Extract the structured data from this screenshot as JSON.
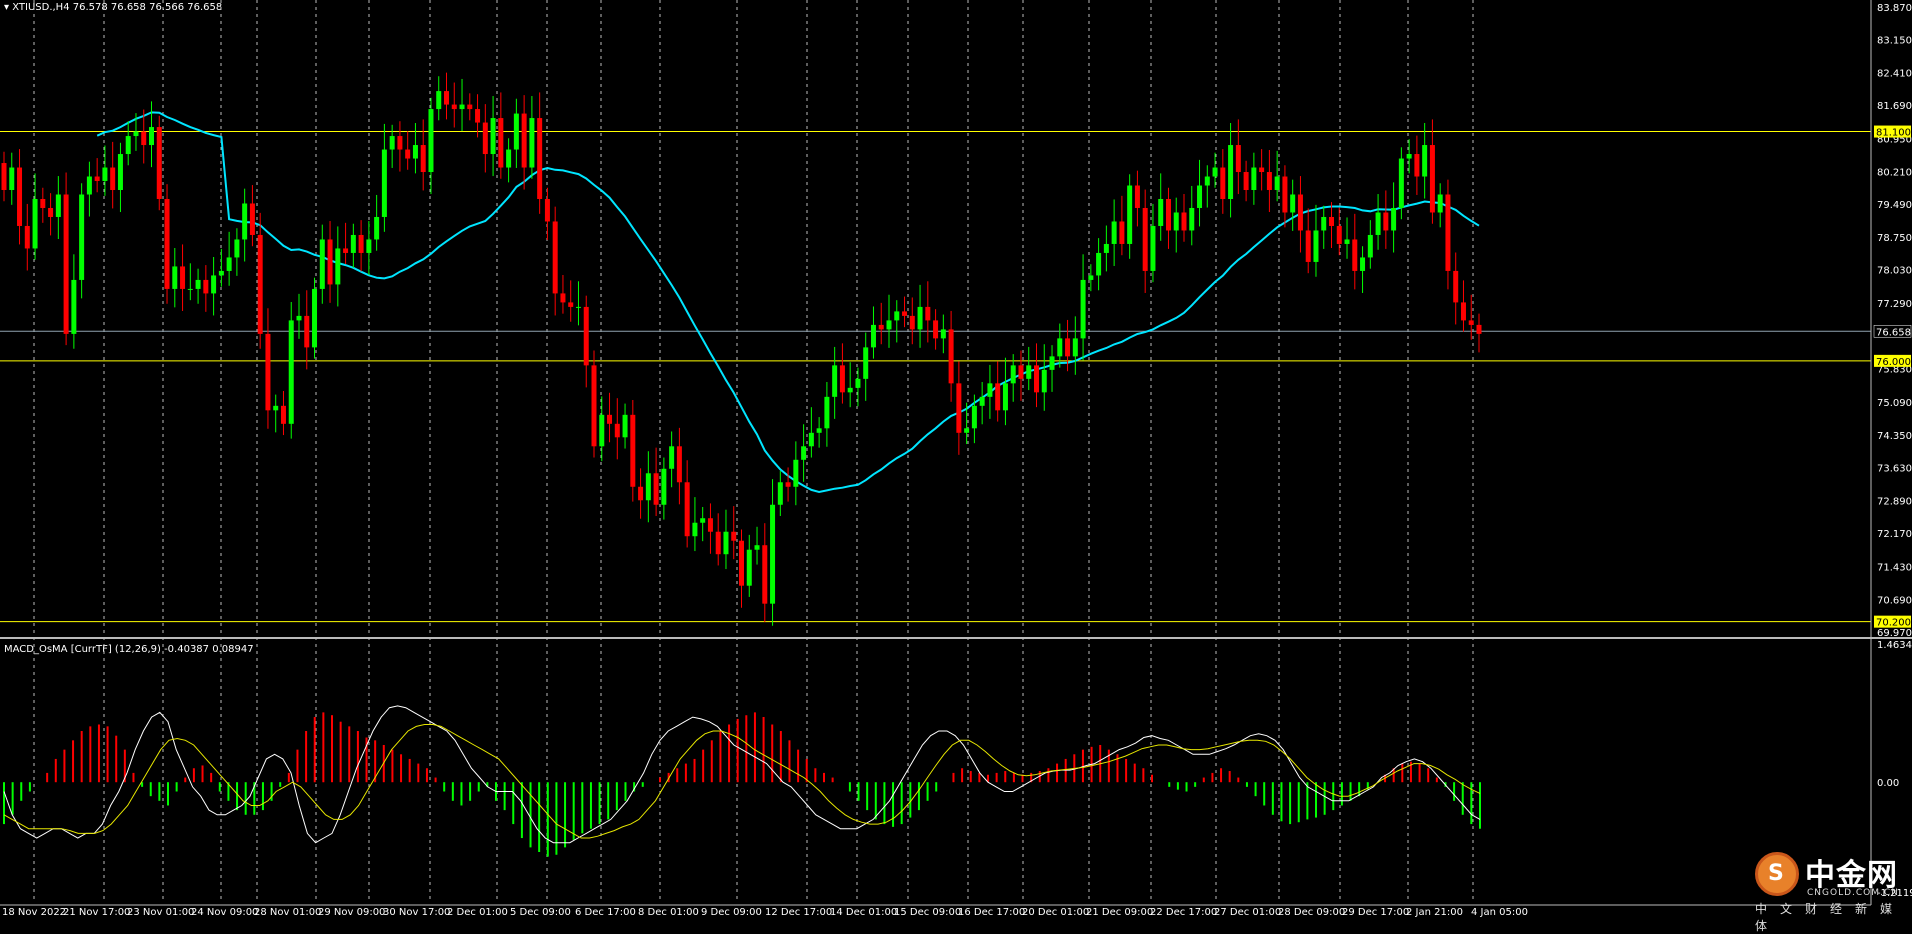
{
  "main_header": {
    "symbol": "XTIUSD.,H4",
    "ohlc": "76.578 76.658 76.566 76.658"
  },
  "price_axis_labels": [
    "83.870",
    "83.150",
    "82.410",
    "81.690",
    "80.950",
    "80.210",
    "79.490",
    "78.750",
    "78.030",
    "77.290",
    "75.830",
    "75.090",
    "74.350",
    "73.630",
    "72.890",
    "72.170",
    "71.430",
    "70.690",
    "69.970"
  ],
  "price_tags": [
    {
      "text": "81.100",
      "color": "#ffff00",
      "text_color": "#000000"
    },
    {
      "text": "76.658",
      "color": "#000000",
      "text_color": "#ffffff"
    },
    {
      "text": "76.000",
      "color": "#ffff00",
      "text_color": "#000000"
    },
    {
      "text": "70.200",
      "color": "#ffff00",
      "text_color": "#000000"
    }
  ],
  "time_labels": [
    "18 Nov 2022",
    "21 Nov 17:00",
    "23 Nov 01:00",
    "24 Nov 09:00",
    "28 Nov 01:00",
    "29 Nov 09:00",
    "30 Nov 17:00",
    "2 Dec 01:00",
    "5 Dec 09:00",
    "6 Dec 17:00",
    "8 Dec 01:00",
    "9 Dec 09:00",
    "12 Dec 17:00",
    "14 Dec 01:00",
    "15 Dec 09:00",
    "16 Dec 17:00",
    "20 Dec 01:00",
    "21 Dec 09:00",
    "22 Dec 17:00",
    "27 Dec 01:00",
    "28 Dec 09:00",
    "29 Dec 17:00",
    "2 Jan 21:00",
    "4 Jan 05:00"
  ],
  "sub_header": "MACD_OsMA [CurrTF] (12,26,9) -0.40387 0.08947",
  "sub_axis_labels": [
    "1.46346",
    "0.00",
    "-1.21198"
  ],
  "colors": {
    "bull": "#00ff00",
    "bear": "#ff0000",
    "ma": "#00e5ff",
    "level": "#ffff00",
    "hist_pos": "#ff0000",
    "hist_neg": "#00ff00",
    "macd": "#ffffff",
    "signal": "#e6e600",
    "grid": "#bbbbbb",
    "border": "#bbbbbb"
  },
  "logo": {
    "cn": "中金网",
    "domain": "CNGOLD.COM.CN",
    "sub": "中文财经新媒体",
    "glyph": "S"
  },
  "chart_data": [
    {
      "type": "candlestick",
      "title": "XTIUSD.,H4",
      "ylim": [
        69.97,
        83.87
      ],
      "levels": [
        81.1,
        76.0,
        70.2
      ],
      "current_price": 76.658,
      "close": [
        79.8,
        80.3,
        79.0,
        78.5,
        79.6,
        79.4,
        79.2,
        79.7,
        76.6,
        77.8,
        79.7,
        80.1,
        80.0,
        80.3,
        79.8,
        80.6,
        81.0,
        81.1,
        80.8,
        81.2,
        79.6,
        77.6,
        78.1,
        77.6,
        77.6,
        77.8,
        77.5,
        77.9,
        78.0,
        78.3,
        78.7,
        79.5,
        78.8,
        76.6,
        74.9,
        75.0,
        74.6,
        76.9,
        77.0,
        76.3,
        77.6,
        78.7,
        77.7,
        78.5,
        78.4,
        78.8,
        78.4,
        78.7,
        79.2,
        80.7,
        81.0,
        80.7,
        80.5,
        80.8,
        80.2,
        81.6,
        82.0,
        81.7,
        81.6,
        81.7,
        81.6,
        81.3,
        80.6,
        81.4,
        80.3,
        80.7,
        81.5,
        80.3,
        81.4,
        79.6,
        79.1,
        77.5,
        77.3,
        77.2,
        77.2,
        75.9,
        74.1,
        74.8,
        74.6,
        74.3,
        74.8,
        73.2,
        72.9,
        73.5,
        72.8,
        73.6,
        74.1,
        73.3,
        72.1,
        72.4,
        72.5,
        72.2,
        71.7,
        72.2,
        72.0,
        71.0,
        71.8,
        71.9,
        70.6,
        72.8,
        73.3,
        73.2,
        73.8,
        74.1,
        74.4,
        74.5,
        75.2,
        75.9,
        75.3,
        75.4,
        75.6,
        76.3,
        76.8,
        76.7,
        76.9,
        77.1,
        77.0,
        76.7,
        77.2,
        76.9,
        76.5,
        76.7,
        75.5,
        74.4,
        74.5,
        75.0,
        75.2,
        75.5,
        74.9,
        75.5,
        75.9,
        75.6,
        75.9,
        75.3,
        75.8,
        76.1,
        76.5,
        76.1,
        76.5,
        77.8,
        77.9,
        78.4,
        78.6,
        79.1,
        78.6,
        79.9,
        79.4,
        78.0,
        79.0,
        79.6,
        78.9,
        79.3,
        78.9,
        79.4,
        79.9,
        80.1,
        80.3,
        79.6,
        80.8,
        80.2,
        79.8,
        80.3,
        80.2,
        79.8,
        80.1,
        79.3,
        79.7,
        78.9,
        78.2,
        78.9,
        79.2,
        79.0,
        78.6,
        78.7,
        78.0,
        78.3,
        78.8,
        79.3,
        78.9,
        79.4,
        80.5,
        80.6,
        80.1,
        80.8,
        79.3,
        79.7,
        78.0,
        77.3,
        76.9,
        76.8,
        76.6
      ]
    },
    {
      "type": "line",
      "title": "MACD_OsMA [CurrTF] (12,26,9)",
      "ylim": [
        -1.21198,
        1.46346
      ],
      "series": [
        {
          "values": [
            -0.1,
            -0.35,
            -0.5,
            -0.55,
            -0.6,
            -0.55,
            -0.5,
            -0.5,
            -0.55,
            -0.6,
            -0.55,
            -0.55,
            -0.45,
            -0.25,
            -0.1,
            0.1,
            0.35,
            0.55,
            0.7,
            0.75,
            0.65,
            0.35,
            0.15,
            -0.05,
            -0.15,
            -0.3,
            -0.35,
            -0.35,
            -0.3,
            -0.25,
            -0.15,
            0.05,
            0.25,
            0.3,
            0.25,
            0.1,
            -0.25,
            -0.55,
            -0.65,
            -0.6,
            -0.55,
            -0.35,
            -0.1,
            0.15,
            0.35,
            0.55,
            0.7,
            0.8,
            0.82,
            0.8,
            0.75,
            0.7,
            0.65,
            0.6,
            0.55,
            0.45,
            0.3,
            0.15,
            0.05,
            -0.05,
            -0.1,
            -0.1,
            -0.1,
            -0.2,
            -0.35,
            -0.5,
            -0.6,
            -0.65,
            -0.65,
            -0.65,
            -0.6,
            -0.55,
            -0.5,
            -0.45,
            -0.4,
            -0.3,
            -0.2,
            -0.05,
            0.1,
            0.3,
            0.45,
            0.55,
            0.6,
            0.65,
            0.7,
            0.68,
            0.65,
            0.6,
            0.5,
            0.4,
            0.35,
            0.3,
            0.25,
            0.2,
            0.1,
            0.0,
            -0.05,
            -0.15,
            -0.25,
            -0.35,
            -0.4,
            -0.45,
            -0.5,
            -0.5,
            -0.5,
            -0.45,
            -0.4,
            -0.3,
            -0.2,
            -0.05,
            0.1,
            0.25,
            0.4,
            0.5,
            0.55,
            0.55,
            0.5,
            0.4,
            0.25,
            0.1,
            0.0,
            -0.05,
            -0.1,
            -0.1,
            -0.05,
            0.0,
            0.05,
            0.1,
            0.12,
            0.13,
            0.13,
            0.15,
            0.18,
            0.2,
            0.25,
            0.3,
            0.35,
            0.38,
            0.42,
            0.48,
            0.5,
            0.47,
            0.45,
            0.4,
            0.35,
            0.3,
            0.3,
            0.3,
            0.33,
            0.36,
            0.4,
            0.45,
            0.5,
            0.52,
            0.5,
            0.45,
            0.35,
            0.2,
            0.05,
            -0.05,
            -0.1,
            -0.15,
            -0.2,
            -0.2,
            -0.2,
            -0.15,
            -0.1,
            -0.05,
            0.05,
            0.1,
            0.18,
            0.22,
            0.25,
            0.22,
            0.15,
            0.05,
            -0.05,
            -0.15,
            -0.25,
            -0.35,
            -0.4
          ]
        },
        {
          "values": [
            -0.35,
            -0.4,
            -0.45,
            -0.5,
            -0.5,
            -0.5,
            -0.5,
            -0.5,
            -0.52,
            -0.55,
            -0.55,
            -0.55,
            -0.52,
            -0.45,
            -0.35,
            -0.25,
            -0.1,
            0.05,
            0.2,
            0.35,
            0.45,
            0.47,
            0.45,
            0.4,
            0.3,
            0.2,
            0.1,
            0.0,
            -0.1,
            -0.2,
            -0.25,
            -0.25,
            -0.2,
            -0.1,
            -0.05,
            0.0,
            -0.05,
            -0.15,
            -0.25,
            -0.35,
            -0.4,
            -0.4,
            -0.35,
            -0.25,
            -0.1,
            0.05,
            0.2,
            0.35,
            0.45,
            0.55,
            0.6,
            0.62,
            0.62,
            0.6,
            0.55,
            0.5,
            0.45,
            0.4,
            0.35,
            0.3,
            0.25,
            0.15,
            0.05,
            -0.05,
            -0.15,
            -0.25,
            -0.35,
            -0.45,
            -0.5,
            -0.55,
            -0.6,
            -0.6,
            -0.58,
            -0.55,
            -0.52,
            -0.48,
            -0.45,
            -0.4,
            -0.3,
            -0.2,
            -0.05,
            0.1,
            0.25,
            0.35,
            0.45,
            0.52,
            0.55,
            0.55,
            0.52,
            0.48,
            0.42,
            0.35,
            0.3,
            0.25,
            0.2,
            0.15,
            0.1,
            0.05,
            -0.02,
            -0.1,
            -0.2,
            -0.28,
            -0.35,
            -0.4,
            -0.43,
            -0.45,
            -0.45,
            -0.43,
            -0.38,
            -0.3,
            -0.2,
            -0.08,
            0.05,
            0.18,
            0.3,
            0.4,
            0.45,
            0.45,
            0.4,
            0.33,
            0.25,
            0.18,
            0.12,
            0.08,
            0.07,
            0.08,
            0.1,
            0.12,
            0.13,
            0.14,
            0.15,
            0.16,
            0.18,
            0.2,
            0.22,
            0.25,
            0.28,
            0.32,
            0.36,
            0.38,
            0.4,
            0.4,
            0.38,
            0.36,
            0.35,
            0.35,
            0.36,
            0.38,
            0.4,
            0.42,
            0.44,
            0.45,
            0.45,
            0.44,
            0.4,
            0.33,
            0.25,
            0.15,
            0.05,
            -0.02,
            -0.08,
            -0.12,
            -0.15,
            -0.15,
            -0.12,
            -0.08,
            -0.04,
            0.02,
            0.07,
            0.12,
            0.16,
            0.2,
            0.2,
            0.18,
            0.14,
            0.08,
            0.03,
            -0.03,
            -0.08,
            -0.12
          ]
        }
      ],
      "histogram": [
        -0.45,
        -0.35,
        -0.2,
        -0.1,
        0.0,
        0.1,
        0.25,
        0.35,
        0.45,
        0.55,
        0.6,
        0.62,
        0.6,
        0.5,
        0.35,
        0.1,
        -0.05,
        -0.15,
        -0.2,
        -0.25,
        -0.1,
        0.05,
        0.15,
        0.18,
        0.1,
        -0.1,
        -0.2,
        -0.3,
        -0.35,
        -0.35,
        -0.3,
        -0.2,
        -0.05,
        0.1,
        0.35,
        0.55,
        0.7,
        0.75,
        0.72,
        0.65,
        0.6,
        0.55,
        0.48,
        0.45,
        0.4,
        0.35,
        0.3,
        0.25,
        0.2,
        0.15,
        0.05,
        -0.1,
        -0.2,
        -0.25,
        -0.2,
        -0.1,
        -0.05,
        -0.2,
        -0.3,
        -0.45,
        -0.6,
        -0.7,
        -0.75,
        -0.8,
        -0.78,
        -0.7,
        -0.62,
        -0.55,
        -0.5,
        -0.45,
        -0.4,
        -0.3,
        -0.2,
        -0.1,
        -0.05,
        0.0,
        0.05,
        0.1,
        0.15,
        0.2,
        0.25,
        0.35,
        0.45,
        0.55,
        0.62,
        0.68,
        0.72,
        0.75,
        0.7,
        0.62,
        0.55,
        0.45,
        0.35,
        0.25,
        0.15,
        0.1,
        0.05,
        0.0,
        -0.1,
        -0.2,
        -0.3,
        -0.4,
        -0.45,
        -0.48,
        -0.45,
        -0.38,
        -0.3,
        -0.2,
        -0.1,
        0.0,
        0.1,
        0.15,
        0.12,
        0.1,
        0.08,
        0.1,
        0.12,
        0.1,
        0.08,
        0.1,
        0.12,
        0.15,
        0.2,
        0.25,
        0.3,
        0.35,
        0.38,
        0.4,
        0.35,
        0.3,
        0.25,
        0.2,
        0.15,
        0.08,
        0.0,
        -0.05,
        -0.08,
        -0.1,
        -0.05,
        0.05,
        0.1,
        0.15,
        0.12,
        0.05,
        -0.05,
        -0.15,
        -0.25,
        -0.35,
        -0.42,
        -0.45,
        -0.43,
        -0.4,
        -0.38,
        -0.35,
        -0.3,
        -0.25,
        -0.2,
        -0.15,
        -0.08,
        0.0,
        0.08,
        0.15,
        0.2,
        0.22,
        0.2,
        0.15,
        0.05,
        -0.05,
        -0.2,
        -0.35,
        -0.45,
        -0.5
      ]
    }
  ]
}
